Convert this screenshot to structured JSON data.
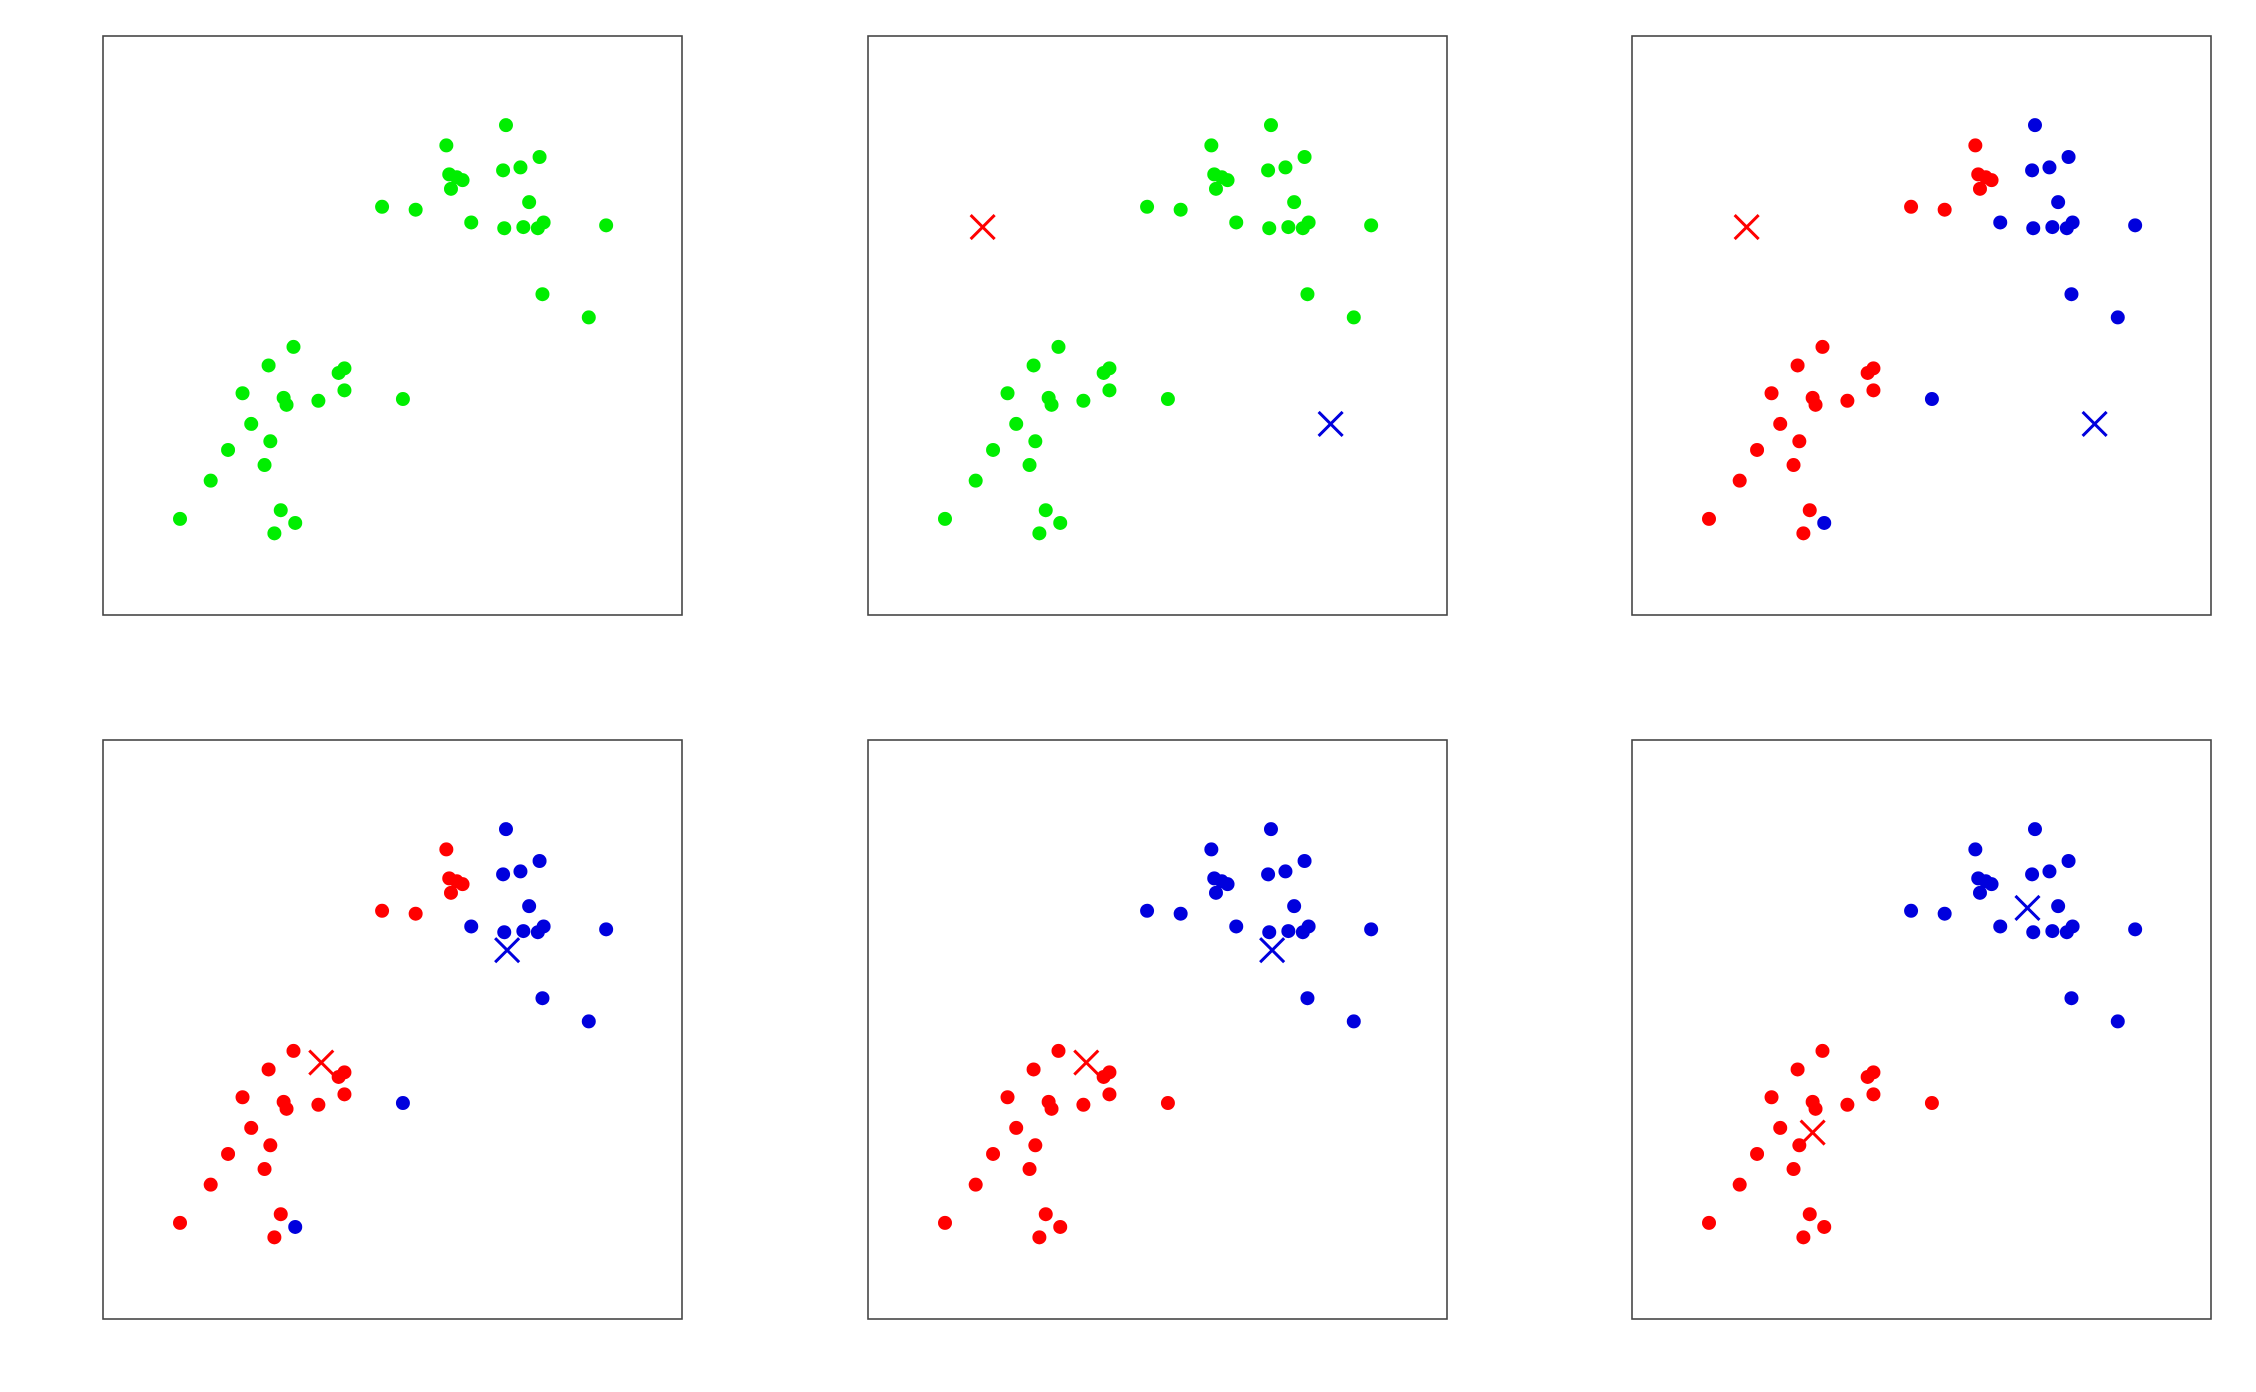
{
  "chart_data": [
    {
      "type": "scatter",
      "xlim": [
        0,
        10
      ],
      "ylim": [
        0,
        10
      ],
      "series": [
        {
          "color": "#00ee00",
          "marker": "dot",
          "x": [
            6.96,
            5.93,
            7.54,
            7.21,
            6.91,
            5.98,
            6.11,
            6.21,
            6.01,
            7.36,
            4.82,
            5.4,
            6.36,
            6.93,
            7.26,
            7.51,
            7.61,
            8.69,
            7.59,
            8.39,
            3.29,
            2.86,
            4.17,
            4.07,
            2.41,
            3.12,
            3.17,
            3.72,
            4.17,
            5.18,
            2.56,
            2.89,
            2.16,
            2.79,
            1.86,
            1.33,
            3.07,
            3.32,
            2.96
          ],
          "values": [
            8.46,
            8.11,
            7.91,
            7.73,
            7.68,
            7.61,
            7.56,
            7.51,
            7.36,
            7.13,
            7.05,
            7.0,
            6.78,
            6.68,
            6.7,
            6.68,
            6.78,
            6.73,
            5.54,
            5.14,
            4.63,
            4.31,
            4.26,
            4.18,
            3.83,
            3.75,
            3.63,
            3.7,
            3.88,
            3.73,
            3.3,
            3.0,
            2.85,
            2.59,
            2.32,
            1.66,
            1.81,
            1.59,
            1.41
          ]
        }
      ]
    },
    {
      "type": "scatter",
      "xlim": [
        0,
        10
      ],
      "ylim": [
        0,
        10
      ],
      "series": [
        {
          "color": "#00ee00",
          "marker": "dot",
          "x": [
            6.96,
            5.93,
            7.54,
            7.21,
            6.91,
            5.98,
            6.11,
            6.21,
            6.01,
            7.36,
            4.82,
            5.4,
            6.36,
            6.93,
            7.26,
            7.51,
            7.61,
            8.69,
            7.59,
            8.39,
            3.29,
            2.86,
            4.17,
            4.07,
            2.41,
            3.12,
            3.17,
            3.72,
            4.17,
            5.18,
            2.56,
            2.89,
            2.16,
            2.79,
            1.86,
            1.33,
            3.07,
            3.32,
            2.96
          ],
          "values": [
            8.46,
            8.11,
            7.91,
            7.73,
            7.68,
            7.61,
            7.56,
            7.51,
            7.36,
            7.13,
            7.05,
            7.0,
            6.78,
            6.68,
            6.7,
            6.68,
            6.78,
            6.73,
            5.54,
            5.14,
            4.63,
            4.31,
            4.26,
            4.18,
            3.83,
            3.75,
            3.63,
            3.7,
            3.88,
            3.73,
            3.3,
            3.0,
            2.85,
            2.59,
            2.32,
            1.66,
            1.81,
            1.59,
            1.41
          ]
        },
        {
          "color": "#ff0000",
          "marker": "x",
          "x": [
            1.98
          ],
          "values": [
            6.7
          ]
        },
        {
          "color": "#0000dd",
          "marker": "x",
          "x": [
            7.99
          ],
          "values": [
            3.3
          ]
        }
      ]
    },
    {
      "type": "scatter",
      "xlim": [
        0,
        10
      ],
      "ylim": [
        0,
        10
      ],
      "series": [
        {
          "color": "#ff0000",
          "marker": "dot",
          "x": [
            5.93,
            5.98,
            6.11,
            6.21,
            6.01,
            4.82,
            5.4,
            3.29,
            2.86,
            4.17,
            4.07,
            2.41,
            3.12,
            3.17,
            3.72,
            4.17,
            2.56,
            2.89,
            2.16,
            2.79,
            1.86,
            1.33,
            3.07,
            2.96
          ],
          "values": [
            8.11,
            7.61,
            7.56,
            7.51,
            7.36,
            7.05,
            7.0,
            4.63,
            4.31,
            4.26,
            4.18,
            3.83,
            3.75,
            3.63,
            3.7,
            3.88,
            3.3,
            3.0,
            2.85,
            2.59,
            2.32,
            1.66,
            1.81,
            1.41
          ]
        },
        {
          "color": "#0000dd",
          "marker": "dot",
          "x": [
            6.96,
            7.54,
            7.21,
            6.91,
            7.36,
            6.36,
            6.93,
            7.26,
            7.51,
            7.61,
            8.69,
            7.59,
            8.39,
            5.18,
            3.32
          ],
          "values": [
            8.46,
            7.91,
            7.73,
            7.68,
            7.13,
            6.78,
            6.68,
            6.7,
            6.68,
            6.78,
            6.73,
            5.54,
            5.14,
            3.73,
            1.59
          ]
        },
        {
          "color": "#ff0000",
          "marker": "x",
          "x": [
            1.98
          ],
          "values": [
            6.7
          ]
        },
        {
          "color": "#0000dd",
          "marker": "x",
          "x": [
            7.99
          ],
          "values": [
            3.3
          ]
        }
      ]
    },
    {
      "type": "scatter",
      "xlim": [
        0,
        10
      ],
      "ylim": [
        0,
        10
      ],
      "series": [
        {
          "color": "#ff0000",
          "marker": "dot",
          "x": [
            5.93,
            5.98,
            6.11,
            6.21,
            6.01,
            4.82,
            5.4,
            3.29,
            2.86,
            4.17,
            4.07,
            2.41,
            3.12,
            3.17,
            3.72,
            4.17,
            2.56,
            2.89,
            2.16,
            2.79,
            1.86,
            1.33,
            3.07,
            2.96
          ],
          "values": [
            8.11,
            7.61,
            7.56,
            7.51,
            7.36,
            7.05,
            7.0,
            4.63,
            4.31,
            4.26,
            4.18,
            3.83,
            3.75,
            3.63,
            3.7,
            3.88,
            3.3,
            3.0,
            2.85,
            2.59,
            2.32,
            1.66,
            1.81,
            1.41
          ]
        },
        {
          "color": "#0000dd",
          "marker": "dot",
          "x": [
            6.96,
            7.54,
            7.21,
            6.91,
            7.36,
            6.36,
            6.93,
            7.26,
            7.51,
            7.61,
            8.69,
            7.59,
            8.39,
            5.18,
            3.32
          ],
          "values": [
            8.46,
            7.91,
            7.73,
            7.68,
            7.13,
            6.78,
            6.68,
            6.7,
            6.68,
            6.78,
            6.73,
            5.54,
            5.14,
            3.73,
            1.59
          ]
        },
        {
          "color": "#ff0000",
          "marker": "x",
          "x": [
            3.77
          ],
          "values": [
            4.43
          ]
        },
        {
          "color": "#0000dd",
          "marker": "x",
          "x": [
            6.98
          ],
          "values": [
            6.37
          ]
        }
      ]
    },
    {
      "type": "scatter",
      "xlim": [
        0,
        10
      ],
      "ylim": [
        0,
        10
      ],
      "series": [
        {
          "color": "#ff0000",
          "marker": "dot",
          "x": [
            3.29,
            2.86,
            4.17,
            4.07,
            2.41,
            3.12,
            3.17,
            3.72,
            4.17,
            5.18,
            2.56,
            2.89,
            2.16,
            2.79,
            1.86,
            1.33,
            3.07,
            3.32,
            2.96
          ],
          "values": [
            4.63,
            4.31,
            4.26,
            4.18,
            3.83,
            3.75,
            3.63,
            3.7,
            3.88,
            3.73,
            3.3,
            3.0,
            2.85,
            2.59,
            2.32,
            1.66,
            1.81,
            1.59,
            1.41
          ]
        },
        {
          "color": "#0000dd",
          "marker": "dot",
          "x": [
            6.96,
            5.93,
            7.54,
            7.21,
            6.91,
            5.98,
            6.11,
            6.21,
            6.01,
            7.36,
            4.82,
            5.4,
            6.36,
            6.93,
            7.26,
            7.51,
            7.61,
            8.69,
            7.59,
            8.39
          ],
          "values": [
            8.46,
            8.11,
            7.91,
            7.73,
            7.68,
            7.61,
            7.56,
            7.51,
            7.36,
            7.13,
            7.05,
            7.0,
            6.78,
            6.68,
            6.7,
            6.68,
            6.78,
            6.73,
            5.54,
            5.14
          ]
        },
        {
          "color": "#ff0000",
          "marker": "x",
          "x": [
            3.77
          ],
          "values": [
            4.43
          ]
        },
        {
          "color": "#0000dd",
          "marker": "x",
          "x": [
            6.98
          ],
          "values": [
            6.37
          ]
        }
      ]
    },
    {
      "type": "scatter",
      "xlim": [
        0,
        10
      ],
      "ylim": [
        0,
        10
      ],
      "series": [
        {
          "color": "#ff0000",
          "marker": "dot",
          "x": [
            3.29,
            2.86,
            4.17,
            4.07,
            2.41,
            3.12,
            3.17,
            3.72,
            4.17,
            5.18,
            2.56,
            2.89,
            2.16,
            2.79,
            1.86,
            1.33,
            3.07,
            3.32,
            2.96
          ],
          "values": [
            4.63,
            4.31,
            4.26,
            4.18,
            3.83,
            3.75,
            3.63,
            3.7,
            3.88,
            3.73,
            3.3,
            3.0,
            2.85,
            2.59,
            2.32,
            1.66,
            1.81,
            1.59,
            1.41
          ]
        },
        {
          "color": "#0000dd",
          "marker": "dot",
          "x": [
            6.96,
            5.93,
            7.54,
            7.21,
            6.91,
            5.98,
            6.11,
            6.21,
            6.01,
            7.36,
            4.82,
            5.4,
            6.36,
            6.93,
            7.26,
            7.51,
            7.61,
            8.69,
            7.59,
            8.39
          ],
          "values": [
            8.46,
            8.11,
            7.91,
            7.73,
            7.68,
            7.61,
            7.56,
            7.51,
            7.36,
            7.13,
            7.05,
            7.0,
            6.78,
            6.68,
            6.7,
            6.68,
            6.78,
            6.73,
            5.54,
            5.14
          ]
        },
        {
          "color": "#ff0000",
          "marker": "x",
          "x": [
            3.12
          ],
          "values": [
            3.22
          ]
        },
        {
          "color": "#0000dd",
          "marker": "x",
          "x": [
            6.83
          ],
          "values": [
            7.1
          ]
        }
      ]
    }
  ]
}
